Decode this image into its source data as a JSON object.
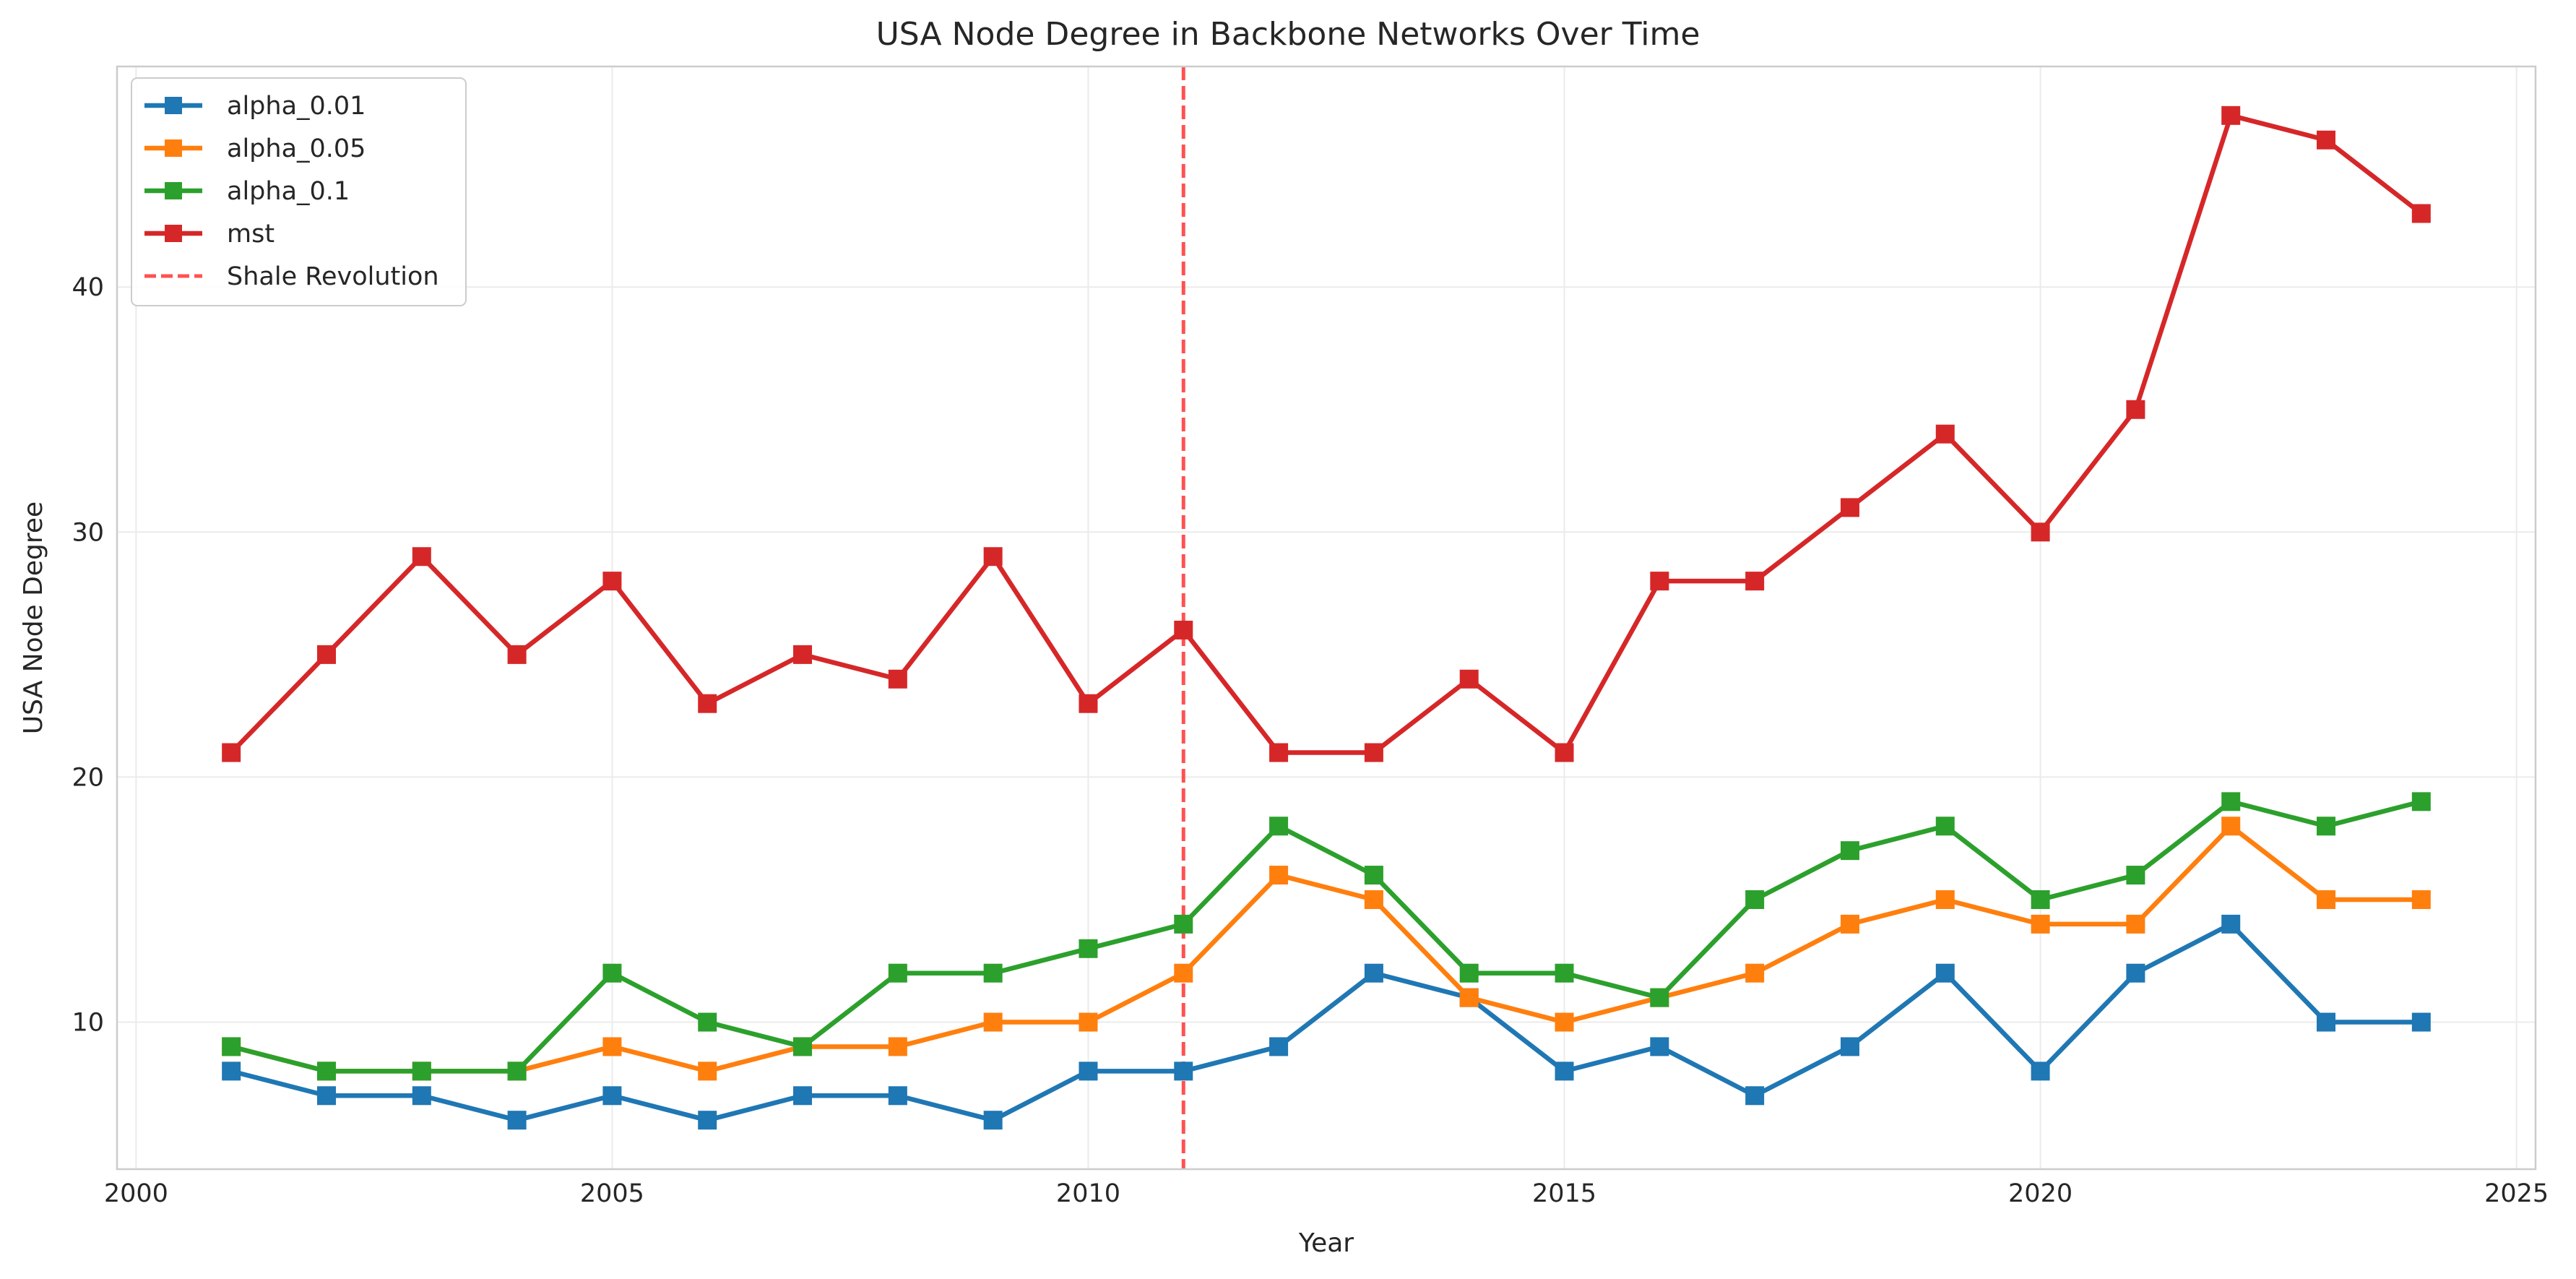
{
  "chart_data": {
    "type": "line",
    "title": "USA Node Degree in Backbone Networks Over Time",
    "xlabel": "Year",
    "ylabel": "USA Node Degree",
    "xlim": [
      1999.8,
      2025.2
    ],
    "ylim": [
      4,
      49
    ],
    "xticks": [
      2000,
      2005,
      2010,
      2015,
      2020,
      2025
    ],
    "yticks": [
      10,
      20,
      30,
      40
    ],
    "grid": true,
    "legend_position": "top-left",
    "x": [
      2001,
      2002,
      2003,
      2004,
      2005,
      2006,
      2007,
      2008,
      2009,
      2010,
      2011,
      2012,
      2013,
      2014,
      2015,
      2016,
      2017,
      2018,
      2019,
      2020,
      2021,
      2022,
      2023,
      2024
    ],
    "series": [
      {
        "name": "alpha_0.01",
        "color": "#1f77b4",
        "marker": "square",
        "values": [
          8,
          7,
          7,
          6,
          7,
          6,
          7,
          7,
          6,
          8,
          8,
          9,
          12,
          11,
          8,
          9,
          7,
          9,
          12,
          8,
          12,
          14,
          10,
          10
        ]
      },
      {
        "name": "alpha_0.05",
        "color": "#ff7f0e",
        "marker": "square",
        "values": [
          9,
          8,
          8,
          8,
          9,
          8,
          9,
          9,
          10,
          10,
          12,
          16,
          15,
          11,
          10,
          11,
          12,
          14,
          15,
          14,
          14,
          18,
          15,
          15
        ]
      },
      {
        "name": "alpha_0.1",
        "color": "#2ca02c",
        "marker": "square",
        "values": [
          9,
          8,
          8,
          8,
          12,
          10,
          9,
          12,
          12,
          13,
          14,
          18,
          16,
          12,
          12,
          11,
          15,
          17,
          18,
          15,
          16,
          19,
          18,
          19
        ]
      },
      {
        "name": "mst",
        "color": "#d62728",
        "marker": "square",
        "values": [
          21,
          25,
          29,
          25,
          28,
          23,
          25,
          24,
          29,
          23,
          26,
          21,
          21,
          24,
          21,
          28,
          28,
          31,
          34,
          30,
          35,
          47,
          46,
          43
        ]
      }
    ],
    "annotations": [
      {
        "type": "vline",
        "x": 2011,
        "label": "Shale Revolution",
        "color": "#ff3333",
        "style": "dashed"
      }
    ]
  }
}
